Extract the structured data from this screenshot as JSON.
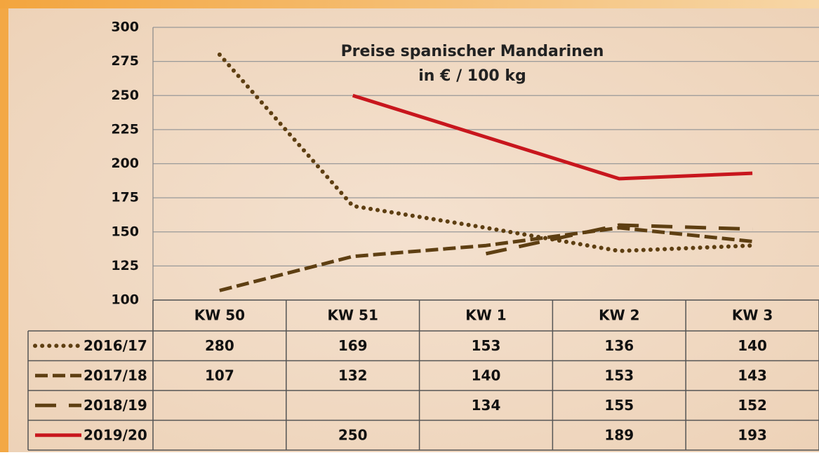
{
  "chart_data": {
    "type": "line",
    "title": "Preise spanischer Mandarinen",
    "subtitle": "in € / 100 kg",
    "categories": [
      "KW 50",
      "KW 51",
      "KW 1",
      "KW 2",
      "KW 3"
    ],
    "series": [
      {
        "name": "2016/17",
        "color": "#5e3f12",
        "style": "dotted",
        "values": [
          280,
          169,
          153,
          136,
          140
        ]
      },
      {
        "name": "2017/18",
        "color": "#5e3f12",
        "style": "dashed",
        "values": [
          107,
          132,
          140,
          153,
          143
        ]
      },
      {
        "name": "2018/19",
        "color": "#5e3f12",
        "style": "long-dashed",
        "values": [
          null,
          null,
          134,
          155,
          152
        ]
      },
      {
        "name": "2019/20",
        "color": "#c8161d",
        "style": "solid",
        "values": [
          null,
          250,
          null,
          189,
          193
        ]
      }
    ],
    "connect_gaps": true,
    "ylim": [
      100,
      300
    ],
    "yticks": [
      100,
      125,
      150,
      175,
      200,
      225,
      250,
      275,
      300
    ],
    "grid": true
  }
}
